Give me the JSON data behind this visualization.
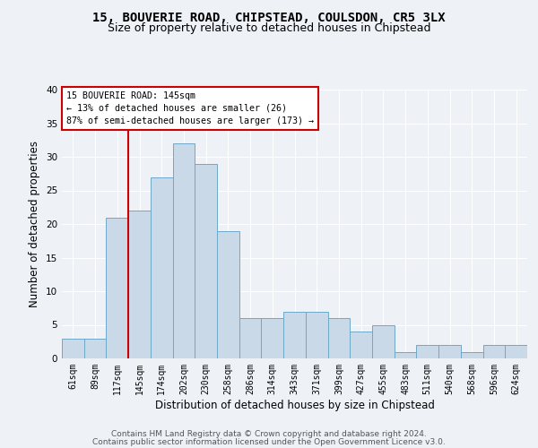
{
  "title1": "15, BOUVERIE ROAD, CHIPSTEAD, COULSDON, CR5 3LX",
  "title2": "Size of property relative to detached houses in Chipstead",
  "xlabel": "Distribution of detached houses by size in Chipstead",
  "ylabel": "Number of detached properties",
  "footer1": "Contains HM Land Registry data © Crown copyright and database right 2024.",
  "footer2": "Contains public sector information licensed under the Open Government Licence v3.0.",
  "bin_labels": [
    "61sqm",
    "89sqm",
    "117sqm",
    "145sqm",
    "174sqm",
    "202sqm",
    "230sqm",
    "258sqm",
    "286sqm",
    "314sqm",
    "343sqm",
    "371sqm",
    "399sqm",
    "427sqm",
    "455sqm",
    "483sqm",
    "511sqm",
    "540sqm",
    "568sqm",
    "596sqm",
    "624sqm"
  ],
  "bar_values": [
    3,
    3,
    21,
    22,
    27,
    32,
    29,
    19,
    6,
    6,
    7,
    7,
    6,
    4,
    5,
    1,
    2,
    2,
    1,
    2,
    2
  ],
  "bar_color": "#c9d9e8",
  "bar_edge_color": "#6fa8c8",
  "vline_x": 2.5,
  "vline_color": "#cc0000",
  "annotation_title": "15 BOUVERIE ROAD: 145sqm",
  "annotation_line1": "← 13% of detached houses are smaller (26)",
  "annotation_line2": "87% of semi-detached houses are larger (173) →",
  "annotation_box_color": "#ffffff",
  "annotation_box_edge": "#cc0000",
  "ylim": [
    0,
    40
  ],
  "yticks": [
    0,
    5,
    10,
    15,
    20,
    25,
    30,
    35,
    40
  ],
  "bg_color": "#eef2f7",
  "plot_bg": "#eef2f7",
  "grid_color": "#ffffff",
  "title_fontsize": 10,
  "subtitle_fontsize": 9,
  "axis_label_fontsize": 8.5,
  "tick_fontsize": 7,
  "footer_fontsize": 6.5
}
